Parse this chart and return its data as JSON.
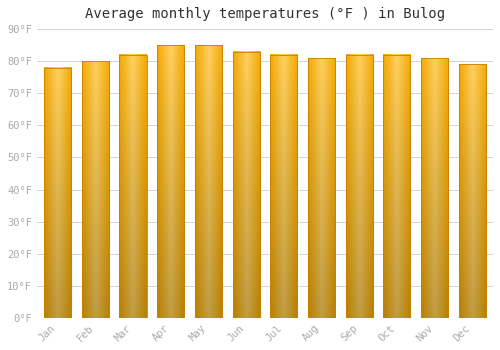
{
  "title": "Average monthly temperatures (°F ) in Bulog",
  "months": [
    "Jan",
    "Feb",
    "Mar",
    "Apr",
    "May",
    "Jun",
    "Jul",
    "Aug",
    "Sep",
    "Oct",
    "Nov",
    "Dec"
  ],
  "values": [
    78,
    80,
    82,
    85,
    85,
    83,
    82,
    81,
    82,
    82,
    81,
    79
  ],
  "bar_color_center": "#FFD060",
  "bar_color_edge": "#F5A800",
  "bar_edge_color": "#C88000",
  "background_color": "#FFFFFF",
  "plot_bg_color": "#FFFFFF",
  "grid_color": "#CCCCCC",
  "tick_color": "#AAAAAA",
  "title_color": "#333333",
  "ylim": [
    0,
    90
  ],
  "yticks": [
    0,
    10,
    20,
    30,
    40,
    50,
    60,
    70,
    80,
    90
  ],
  "ytick_labels": [
    "0°F",
    "10°F",
    "20°F",
    "30°F",
    "40°F",
    "50°F",
    "60°F",
    "70°F",
    "80°F",
    "90°F"
  ],
  "title_fontsize": 10,
  "tick_fontsize": 7.5,
  "bar_width": 0.72,
  "figsize": [
    5.0,
    3.5
  ],
  "dpi": 100
}
